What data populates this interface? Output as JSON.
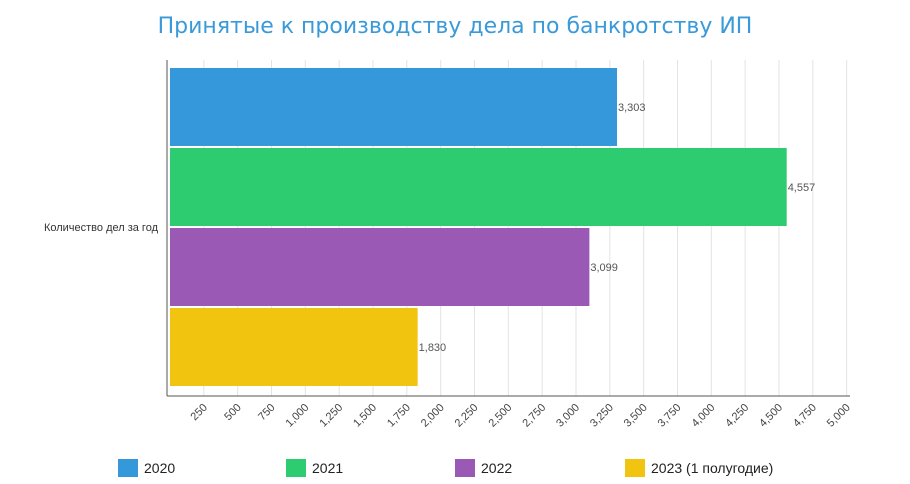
{
  "chart_data": {
    "type": "bar",
    "orientation": "horizontal",
    "title": "Принятые к производству дела по банкротству ИП",
    "categories": [
      "Количество дел за год"
    ],
    "series": [
      {
        "name": "2020",
        "values": [
          3303
        ],
        "label": "3,303",
        "color": "#3498db"
      },
      {
        "name": "2021",
        "values": [
          4557
        ],
        "label": "4,557",
        "color": "#2ecc71"
      },
      {
        "name": "2022",
        "values": [
          3099
        ],
        "label": "3,099",
        "color": "#9b59b6"
      },
      {
        "name": "2023 (1 полугодие)",
        "values": [
          1830
        ],
        "label": "1,830",
        "color": "#f1c40f"
      }
    ],
    "xlim": [
      0,
      5000
    ],
    "xticks": [
      "250",
      "500",
      "750",
      "1,000",
      "1,250",
      "1,500",
      "1,750",
      "2,000",
      "2,250",
      "2,500",
      "2,750",
      "3,000",
      "3,250",
      "3,500",
      "3,750",
      "4,000",
      "4,250",
      "4,500",
      "4,750",
      "5,000"
    ],
    "grid": true,
    "legend_position": "bottom"
  }
}
